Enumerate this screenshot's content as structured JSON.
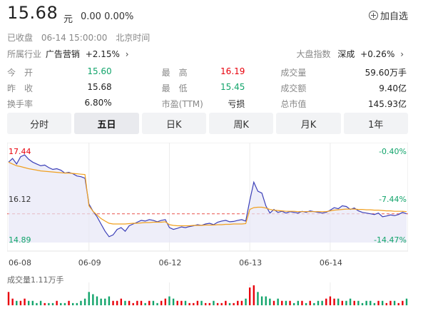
{
  "quote": {
    "price": "15.68",
    "unit": "元",
    "change": "0.00 0.00%",
    "add_watch": "加自选",
    "status": "已收盘",
    "date_time": "06-14 15:00:00",
    "timezone": "北京时间"
  },
  "industry": {
    "label": "所属行业",
    "name": "广告营销",
    "change": "+2.15%"
  },
  "index": {
    "label": "大盘指数",
    "name": "深成",
    "change": "+0.26%"
  },
  "stats": [
    [
      {
        "label": "今　开",
        "value": "15.60",
        "color": "green"
      },
      {
        "label": "最　高",
        "value": "16.19",
        "color": "red"
      },
      {
        "label": "成交量",
        "value": "59.60万手",
        "color": ""
      }
    ],
    [
      {
        "label": "昨　收",
        "value": "15.68",
        "color": ""
      },
      {
        "label": "最　低",
        "value": "15.45",
        "color": "green"
      },
      {
        "label": "成交额",
        "value": "9.40亿",
        "color": ""
      }
    ],
    [
      {
        "label": "换手率",
        "value": "6.80%",
        "color": ""
      },
      {
        "label": "市盈(TTM)",
        "value": "亏损",
        "color": ""
      },
      {
        "label": "总市值",
        "value": "145.93亿",
        "color": ""
      }
    ]
  ],
  "tabs": [
    "分时",
    "五日",
    "日K",
    "周K",
    "月K",
    "1年"
  ],
  "active_tab": "五日",
  "colors": {
    "up": "#e8000b",
    "down": "#12a46b",
    "price_line": "#3b3fb8",
    "avg_line": "#f0a020"
  },
  "volume_label": "成交量1.11万手",
  "chart_data": {
    "type": "line",
    "title": "",
    "x_ticks": [
      "06-08",
      "06-09",
      "06-12",
      "06-13",
      "06-14"
    ],
    "y_left_ticks": [
      "17.44",
      "16.12",
      "14.89"
    ],
    "y_right_ticks": [
      "-0.40%",
      "-7.44%",
      "-14.47%"
    ],
    "ylim": [
      14.89,
      17.44
    ],
    "prev_close": 15.68,
    "series": [
      {
        "values": [
          17.1,
          17.2,
          17.05,
          17.25,
          17.3,
          17.18,
          17.1,
          17.05,
          17.0,
          17.02,
          16.95,
          16.9,
          16.92,
          16.88,
          16.8,
          16.82,
          16.78,
          16.72,
          16.7,
          16.66,
          15.95,
          15.75,
          15.6,
          15.4,
          15.2,
          15.05,
          15.1,
          15.25,
          15.3,
          15.2,
          15.35,
          15.4,
          15.45,
          15.5,
          15.48,
          15.52,
          15.5,
          15.46,
          15.5,
          15.52,
          15.3,
          15.25,
          15.28,
          15.32,
          15.3,
          15.33,
          15.35,
          15.38,
          15.36,
          15.4,
          15.42,
          15.38,
          15.45,
          15.48,
          15.5,
          15.46,
          15.47,
          15.5,
          15.52,
          15.48,
          16.05,
          16.55,
          16.3,
          16.25,
          15.9,
          15.7,
          15.8,
          15.72,
          15.75,
          15.7,
          15.74,
          15.72,
          15.7,
          15.75,
          15.72,
          15.76,
          15.74,
          15.72,
          15.7,
          15.72,
          15.78,
          15.85,
          15.82,
          15.9,
          15.88,
          15.8,
          15.84,
          15.76,
          15.72,
          15.7,
          15.68,
          15.66,
          15.7,
          15.6,
          15.62,
          15.65,
          15.63,
          15.66,
          15.72,
          15.68
        ]
      },
      {
        "values": [
          17.1,
          17.05,
          17.0,
          16.98,
          16.95,
          16.92,
          16.9,
          16.88,
          16.86,
          16.85,
          16.84,
          16.83,
          16.82,
          16.81,
          16.8,
          16.8,
          16.79,
          16.78,
          16.77,
          16.76,
          15.9,
          15.75,
          15.65,
          15.55,
          15.48,
          15.42,
          15.4,
          15.4,
          15.4,
          15.4,
          15.41,
          15.42,
          15.42,
          15.43,
          15.44,
          15.44,
          15.45,
          15.45,
          15.45,
          15.46,
          15.38,
          15.36,
          15.35,
          15.35,
          15.35,
          15.35,
          15.36,
          15.36,
          15.36,
          15.37,
          15.37,
          15.37,
          15.38,
          15.38,
          15.39,
          15.39,
          15.4,
          15.4,
          15.4,
          15.41,
          15.8,
          15.85,
          15.86,
          15.86,
          15.84,
          15.8,
          15.78,
          15.77,
          15.76,
          15.75,
          15.75,
          15.75,
          15.74,
          15.74,
          15.74,
          15.74,
          15.74,
          15.74,
          15.74,
          15.74,
          15.76,
          15.78,
          15.79,
          15.8,
          15.81,
          15.81,
          15.81,
          15.8,
          15.8,
          15.79,
          15.79,
          15.78,
          15.78,
          15.77,
          15.76,
          15.76,
          15.75,
          15.75,
          15.75,
          15.74
        ]
      }
    ],
    "volume": [
      6,
      3,
      2,
      2,
      3,
      2,
      2,
      1,
      2,
      1,
      1,
      1,
      2,
      1,
      1,
      2,
      1,
      1,
      2,
      3,
      6,
      5,
      4,
      3,
      3,
      4,
      2,
      2,
      3,
      2,
      2,
      1,
      2,
      2,
      1,
      2,
      2,
      1,
      2,
      3,
      4,
      3,
      2,
      2,
      2,
      1,
      1,
      2,
      2,
      1,
      1,
      2,
      1,
      1,
      2,
      1,
      1,
      2,
      2,
      3,
      8,
      9,
      6,
      4,
      4,
      3,
      2,
      3,
      2,
      2,
      2,
      1,
      2,
      2,
      1,
      2,
      1,
      2,
      2,
      3,
      4,
      3,
      3,
      2,
      2,
      3,
      2,
      2,
      1,
      2,
      2,
      1,
      2,
      2,
      1,
      2,
      2,
      1,
      2,
      3
    ]
  }
}
